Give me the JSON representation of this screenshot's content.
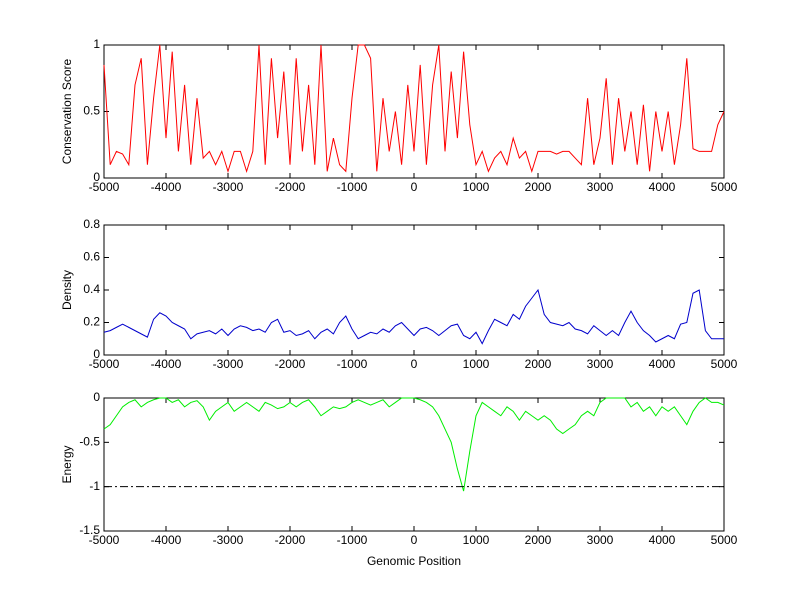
{
  "chart_data": [
    {
      "type": "line",
      "ylabel": "Conservation Score",
      "x": [
        -5000,
        -4900,
        -4800,
        -4700,
        -4600,
        -4500,
        -4400,
        -4300,
        -4200,
        -4100,
        -4000,
        -3900,
        -3800,
        -3700,
        -3600,
        -3500,
        -3400,
        -3300,
        -3200,
        -3100,
        -3000,
        -2900,
        -2800,
        -2700,
        -2600,
        -2500,
        -2400,
        -2300,
        -2200,
        -2100,
        -2000,
        -1900,
        -1800,
        -1700,
        -1600,
        -1500,
        -1400,
        -1300,
        -1200,
        -1100,
        -1000,
        -900,
        -800,
        -700,
        -600,
        -500,
        -400,
        -300,
        -200,
        -100,
        0,
        100,
        200,
        300,
        400,
        500,
        600,
        700,
        800,
        900,
        1000,
        1100,
        1200,
        1300,
        1400,
        1500,
        1600,
        1700,
        1800,
        1900,
        2000,
        2100,
        2200,
        2300,
        2400,
        2500,
        2600,
        2700,
        2800,
        2900,
        3000,
        3100,
        3200,
        3300,
        3400,
        3500,
        3600,
        3700,
        3800,
        3900,
        4000,
        4100,
        4200,
        4300,
        4400,
        4500,
        4600,
        4700,
        4800,
        4900,
        5000
      ],
      "series": [
        {
          "color": "#ff0000",
          "values": [
            0.85,
            0.1,
            0.2,
            0.18,
            0.1,
            0.7,
            0.9,
            0.1,
            0.6,
            1,
            0.3,
            0.95,
            0.2,
            0.7,
            0.1,
            0.6,
            0.15,
            0.2,
            0.1,
            0.2,
            0.05,
            0.2,
            0.2,
            0.05,
            0.2,
            1,
            0.1,
            0.9,
            0.3,
            0.8,
            0.1,
            0.9,
            0.2,
            0.7,
            0.1,
            1,
            0.05,
            0.3,
            0.1,
            0.05,
            0.6,
            1,
            1,
            0.9,
            0.05,
            0.6,
            0.2,
            0.5,
            0.1,
            0.7,
            0.2,
            0.85,
            0.1,
            0.7,
            1,
            0.2,
            0.8,
            0.3,
            0.95,
            0.4,
            0.1,
            0.2,
            0.05,
            0.15,
            0.2,
            0.1,
            0.3,
            0.15,
            0.2,
            0.05,
            0.2,
            0.2,
            0.2,
            0.18,
            0.2,
            0.2,
            0.15,
            0.1,
            0.6,
            0.1,
            0.3,
            0.75,
            0.1,
            0.6,
            0.2,
            0.5,
            0.1,
            0.55,
            0.05,
            0.5,
            0.2,
            0.5,
            0.1,
            0.4,
            0.9,
            0.22,
            0.2,
            0.2,
            0.2,
            0.4,
            0.5
          ]
        }
      ],
      "xlim": [
        -5000,
        5000
      ],
      "xticks": [
        -5000,
        -4000,
        -3000,
        -2000,
        -1000,
        0,
        1000,
        2000,
        3000,
        4000,
        5000
      ],
      "ylim": [
        0,
        1
      ],
      "yticks": [
        0,
        0.5,
        1
      ]
    },
    {
      "type": "line",
      "ylabel": "Density",
      "x": [
        -5000,
        -4900,
        -4800,
        -4700,
        -4600,
        -4500,
        -4400,
        -4300,
        -4200,
        -4100,
        -4000,
        -3900,
        -3800,
        -3700,
        -3600,
        -3500,
        -3400,
        -3300,
        -3200,
        -3100,
        -3000,
        -2900,
        -2800,
        -2700,
        -2600,
        -2500,
        -2400,
        -2300,
        -2200,
        -2100,
        -2000,
        -1900,
        -1800,
        -1700,
        -1600,
        -1500,
        -1400,
        -1300,
        -1200,
        -1100,
        -1000,
        -900,
        -800,
        -700,
        -600,
        -500,
        -400,
        -300,
        -200,
        -100,
        0,
        100,
        200,
        300,
        400,
        500,
        600,
        700,
        800,
        900,
        1000,
        1100,
        1200,
        1300,
        1400,
        1500,
        1600,
        1700,
        1800,
        1900,
        2000,
        2100,
        2200,
        2300,
        2400,
        2500,
        2600,
        2700,
        2800,
        2900,
        3000,
        3100,
        3200,
        3300,
        3400,
        3500,
        3600,
        3700,
        3800,
        3900,
        4000,
        4100,
        4200,
        4300,
        4400,
        4500,
        4600,
        4700,
        4800,
        4900,
        5000
      ],
      "series": [
        {
          "color": "#0000cc",
          "values": [
            0.14,
            0.15,
            0.17,
            0.19,
            0.17,
            0.15,
            0.13,
            0.11,
            0.22,
            0.26,
            0.24,
            0.2,
            0.18,
            0.16,
            0.1,
            0.13,
            0.14,
            0.15,
            0.13,
            0.16,
            0.12,
            0.16,
            0.18,
            0.17,
            0.15,
            0.16,
            0.14,
            0.2,
            0.22,
            0.14,
            0.15,
            0.12,
            0.13,
            0.15,
            0.1,
            0.14,
            0.16,
            0.13,
            0.2,
            0.24,
            0.16,
            0.1,
            0.12,
            0.14,
            0.13,
            0.16,
            0.14,
            0.18,
            0.2,
            0.16,
            0.12,
            0.16,
            0.17,
            0.15,
            0.12,
            0.15,
            0.18,
            0.19,
            0.12,
            0.1,
            0.14,
            0.07,
            0.15,
            0.22,
            0.2,
            0.18,
            0.25,
            0.22,
            0.3,
            0.35,
            0.4,
            0.25,
            0.2,
            0.19,
            0.18,
            0.2,
            0.16,
            0.15,
            0.13,
            0.18,
            0.15,
            0.12,
            0.15,
            0.12,
            0.2,
            0.27,
            0.2,
            0.15,
            0.12,
            0.08,
            0.1,
            0.12,
            0.1,
            0.19,
            0.2,
            0.38,
            0.4,
            0.15,
            0.1,
            0.1,
            0.1
          ]
        }
      ],
      "xlim": [
        -5000,
        5000
      ],
      "xticks": [
        -5000,
        -4000,
        -3000,
        -2000,
        -1000,
        0,
        1000,
        2000,
        3000,
        4000,
        5000
      ],
      "ylim": [
        0,
        0.8
      ],
      "yticks": [
        0,
        0.2,
        0.4,
        0.6,
        0.8
      ]
    },
    {
      "type": "line",
      "ylabel": "Energy",
      "xlabel": "Genomic Position",
      "x": [
        -5000,
        -4900,
        -4800,
        -4700,
        -4600,
        -4500,
        -4400,
        -4300,
        -4200,
        -4100,
        -4000,
        -3900,
        -3800,
        -3700,
        -3600,
        -3500,
        -3400,
        -3300,
        -3200,
        -3100,
        -3000,
        -2900,
        -2800,
        -2700,
        -2600,
        -2500,
        -2400,
        -2300,
        -2200,
        -2100,
        -2000,
        -1900,
        -1800,
        -1700,
        -1600,
        -1500,
        -1400,
        -1300,
        -1200,
        -1100,
        -1000,
        -900,
        -800,
        -700,
        -600,
        -500,
        -400,
        -300,
        -200,
        -100,
        0,
        100,
        200,
        300,
        400,
        500,
        600,
        700,
        800,
        900,
        1000,
        1100,
        1200,
        1300,
        1400,
        1500,
        1600,
        1700,
        1800,
        1900,
        2000,
        2100,
        2200,
        2300,
        2400,
        2500,
        2600,
        2700,
        2800,
        2900,
        3000,
        3100,
        3200,
        3300,
        3400,
        3500,
        3600,
        3700,
        3800,
        3900,
        4000,
        4100,
        4200,
        4300,
        4400,
        4500,
        4600,
        4700,
        4800,
        4900,
        5000
      ],
      "series": [
        {
          "color": "#00ee00",
          "values": [
            -0.35,
            -0.3,
            -0.2,
            -0.1,
            -0.05,
            -0.02,
            -0.1,
            -0.05,
            -0.02,
            0,
            0,
            -0.05,
            -0.02,
            -0.1,
            -0.05,
            -0.03,
            -0.1,
            -0.25,
            -0.15,
            -0.1,
            -0.05,
            -0.15,
            -0.1,
            -0.05,
            -0.1,
            -0.15,
            -0.05,
            -0.08,
            -0.12,
            -0.1,
            -0.05,
            -0.1,
            -0.05,
            -0.02,
            -0.1,
            -0.2,
            -0.15,
            -0.1,
            -0.12,
            -0.1,
            -0.05,
            -0.02,
            -0.05,
            -0.08,
            -0.05,
            -0.02,
            -0.1,
            -0.05,
            0,
            0,
            0,
            -0.02,
            -0.05,
            -0.1,
            -0.2,
            -0.35,
            -0.5,
            -0.8,
            -1.05,
            -0.6,
            -0.2,
            -0.05,
            -0.1,
            -0.15,
            -0.2,
            -0.1,
            -0.15,
            -0.25,
            -0.15,
            -0.2,
            -0.25,
            -0.2,
            -0.25,
            -0.35,
            -0.4,
            -0.35,
            -0.3,
            -0.2,
            -0.15,
            -0.2,
            -0.05,
            0,
            0,
            0,
            0,
            -0.1,
            -0.05,
            -0.15,
            -0.1,
            -0.2,
            -0.1,
            -0.15,
            -0.1,
            -0.2,
            -0.3,
            -0.15,
            -0.05,
            0,
            -0.05,
            -0.05,
            -0.08
          ]
        }
      ],
      "reference_line": {
        "value": -1,
        "color": "#000000",
        "style": "dashdot"
      },
      "xlim": [
        -5000,
        5000
      ],
      "xticks": [
        -5000,
        -4000,
        -3000,
        -2000,
        -1000,
        0,
        1000,
        2000,
        3000,
        4000,
        5000
      ],
      "ylim": [
        -1.5,
        0
      ],
      "yticks": [
        -1.5,
        -1,
        -0.5,
        0
      ]
    }
  ]
}
